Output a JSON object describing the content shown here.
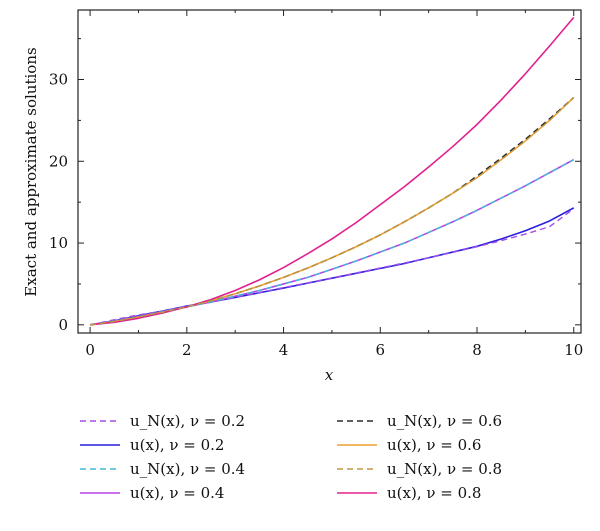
{
  "chart_data": {
    "type": "line",
    "xlabel": "x",
    "ylabel": "Exact and approximate solutions",
    "xlim": [
      -0.25,
      10.15
    ],
    "ylim": [
      -1.0,
      38.5
    ],
    "x_ticks": [
      0,
      2,
      4,
      6,
      8,
      10
    ],
    "y_ticks": [
      0,
      10,
      20,
      30
    ],
    "grid": false,
    "legend_placement": "bottom",
    "x": [
      0,
      0.5,
      1,
      1.5,
      2,
      2.5,
      3,
      3.5,
      4,
      4.5,
      5,
      5.5,
      6,
      6.5,
      7,
      7.5,
      8,
      8.5,
      9,
      9.5,
      10
    ],
    "series": [
      {
        "name": "u_N(x), ν = 0.2",
        "color": "#a34de8",
        "dash": true,
        "values": [
          0,
          0.62,
          1.22,
          1.68,
          2.3,
          2.75,
          3.37,
          3.96,
          4.55,
          5.14,
          5.73,
          6.34,
          6.95,
          7.57,
          8.2,
          8.87,
          9.55,
          10.3,
          11.1,
          12.0,
          14.2
        ]
      },
      {
        "name": "u(x), ν = 0.2",
        "color": "#2a1fe0",
        "dash": false,
        "values": [
          0,
          0.5,
          1.1,
          1.68,
          2.3,
          2.8,
          3.35,
          3.92,
          4.5,
          5.1,
          5.7,
          6.3,
          6.9,
          7.5,
          8.2,
          8.9,
          9.6,
          10.5,
          11.5,
          12.7,
          14.3
        ]
      },
      {
        "name": "u_N(x), ν = 0.4",
        "color": "#3fbcd0",
        "dash": true,
        "values": [
          0,
          0.45,
          1.0,
          1.6,
          2.2,
          2.8,
          3.5,
          4.2,
          5.0,
          5.8,
          6.8,
          7.8,
          8.9,
          10.0,
          11.3,
          12.6,
          14.0,
          15.5,
          17.0,
          18.6,
          20.2
        ]
      },
      {
        "name": "u(x), ν = 0.4",
        "color": "#b940ea",
        "dash": false,
        "values": [
          0,
          0.45,
          1.0,
          1.6,
          2.2,
          2.8,
          3.5,
          4.2,
          5.0,
          5.8,
          6.8,
          7.8,
          8.9,
          10.0,
          11.3,
          12.6,
          14.0,
          15.5,
          17.0,
          18.6,
          20.2
        ]
      },
      {
        "name": "u_N(x), ν = 0.6",
        "color": "#2b2b2b",
        "dash": true,
        "values": [
          0,
          0.4,
          0.95,
          1.55,
          2.2,
          2.95,
          3.8,
          4.75,
          5.8,
          6.95,
          8.2,
          9.55,
          11.0,
          12.6,
          14.3,
          16.1,
          18.2,
          20.4,
          22.7,
          25.2,
          27.8
        ]
      },
      {
        "name": "u(x), ν = 0.6",
        "color": "#f0a030",
        "dash": false,
        "values": [
          0,
          0.4,
          0.95,
          1.55,
          2.2,
          2.95,
          3.8,
          4.75,
          5.8,
          6.95,
          8.2,
          9.55,
          11.0,
          12.6,
          14.3,
          16.1,
          18.0,
          20.2,
          22.5,
          25.0,
          27.8
        ]
      },
      {
        "name": "u_N(x), ν = 0.8",
        "color": "#c09a45",
        "dash": true,
        "values": [
          0,
          0.4,
          0.95,
          1.55,
          2.2,
          2.95,
          3.8,
          4.75,
          5.8,
          6.95,
          8.2,
          9.55,
          11.0,
          12.6,
          14.3,
          16.1,
          18.0,
          20.2,
          22.5,
          25.0,
          27.8
        ]
      },
      {
        "name": "u(x), ν = 0.8",
        "color": "#e0208f",
        "dash": false,
        "values": [
          0,
          0.3,
          0.8,
          1.45,
          2.2,
          3.1,
          4.2,
          5.5,
          7.0,
          8.7,
          10.5,
          12.5,
          14.7,
          16.9,
          19.3,
          21.8,
          24.5,
          27.5,
          30.7,
          34.1,
          37.6
        ]
      }
    ]
  }
}
